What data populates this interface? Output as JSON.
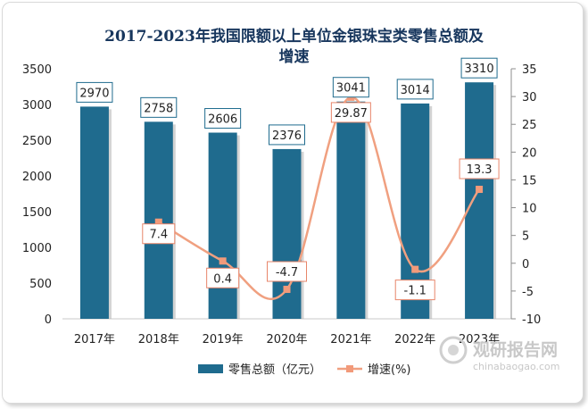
{
  "title": "2017-2023年我国限额以上单位金银珠宝类零售总额及增速",
  "title_line1": "2017-2023年我国限额以上单位金银珠宝类零售总额及",
  "title_line2": "增速",
  "watermark": {
    "cn": "观研报告网",
    "en": "chinabaogao.com"
  },
  "colors": {
    "bar": "#1f6b8e",
    "line": "#f0a080",
    "marker": "#f29a7a",
    "label_border_bar": "#1f6b8e",
    "label_border_line": "#e8856a"
  },
  "chart_data": {
    "type": "bar+line",
    "categories": [
      "2017年",
      "2018年",
      "2019年",
      "2020年",
      "2021年",
      "2022年",
      "2023年"
    ],
    "series": [
      {
        "name": "零售总额（亿元）",
        "type": "bar",
        "axis": "left",
        "values": [
          2970,
          2758,
          2606,
          2376,
          3041,
          3014,
          3310
        ],
        "labels": [
          "2970",
          "2758",
          "2606",
          "2376",
          "3041",
          "3014",
          "3310"
        ]
      },
      {
        "name": "增速(%)",
        "type": "line",
        "axis": "right",
        "values": [
          null,
          7.4,
          0.4,
          -4.7,
          29.87,
          -1.1,
          13.3
        ],
        "labels": [
          "",
          "7.4",
          "0.4",
          "-4.7",
          "29.87",
          "-1.1",
          "13.3"
        ]
      }
    ],
    "y_left": {
      "min": 0,
      "max": 3500,
      "ticks": [
        "0",
        "500",
        "1000",
        "1500",
        "2000",
        "2500",
        "3000",
        "3500"
      ]
    },
    "y_right": {
      "min": -10,
      "max": 35,
      "ticks": [
        "-10",
        "-5",
        "0",
        "5",
        "10",
        "15",
        "20",
        "25",
        "30",
        "35"
      ]
    },
    "legend": {
      "position": "bottom",
      "entries": [
        "零售总额（亿元）",
        "增速(%)"
      ]
    },
    "grid": false
  }
}
